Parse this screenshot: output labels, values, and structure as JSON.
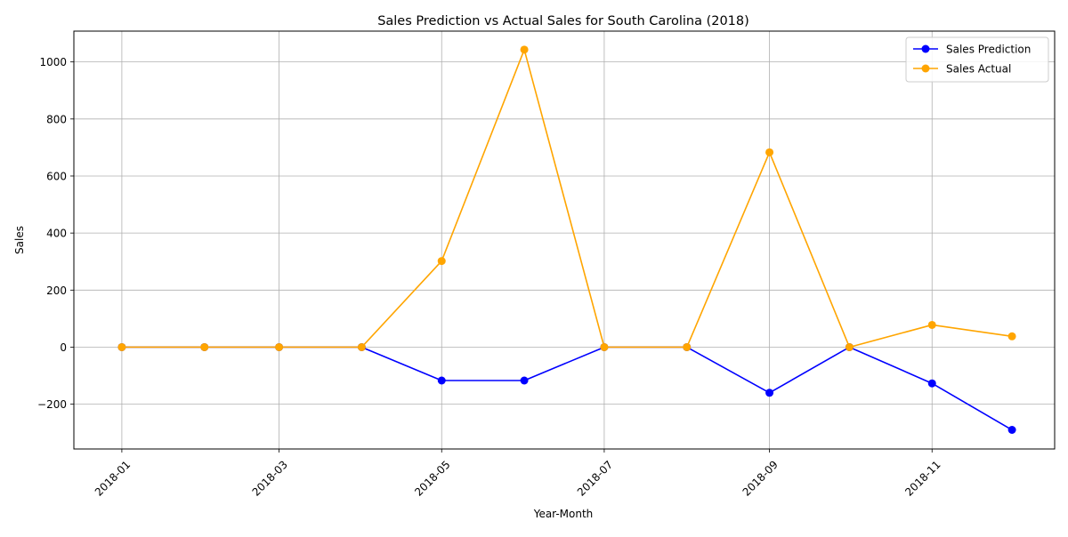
{
  "chart_data": {
    "type": "line",
    "title": "Sales Prediction vs Actual Sales for South Carolina (2018)",
    "xlabel": "Year-Month",
    "ylabel": "Sales",
    "x": [
      "2018-01",
      "2018-02",
      "2018-03",
      "2018-04",
      "2018-05",
      "2018-06",
      "2018-07",
      "2018-08",
      "2018-09",
      "2018-10",
      "2018-11",
      "2018-12"
    ],
    "x_tick_labels": [
      "2018-01",
      "2018-03",
      "2018-05",
      "2018-07",
      "2018-09",
      "2018-11"
    ],
    "y_ticks": [
      -200,
      0,
      200,
      400,
      600,
      800,
      1000
    ],
    "y_tick_labels": [
      "−200",
      "0",
      "200",
      "400",
      "600",
      "800",
      "1000"
    ],
    "ylim": [
      -357,
      1108
    ],
    "xlim": [
      "2017-12-14",
      "2018-12-17"
    ],
    "grid": true,
    "legend_position": "top-right",
    "series": [
      {
        "name": "Sales Prediction",
        "color": "#0000ff",
        "marker": "circle",
        "values": [
          0,
          0,
          0,
          0,
          -117,
          -117,
          0,
          0,
          -160,
          0,
          -127,
          -290
        ]
      },
      {
        "name": "Sales Actual",
        "color": "#ffa500",
        "marker": "circle",
        "values": [
          0,
          0,
          0,
          0,
          302,
          1043,
          0,
          0,
          683,
          0,
          78,
          38
        ]
      }
    ]
  }
}
